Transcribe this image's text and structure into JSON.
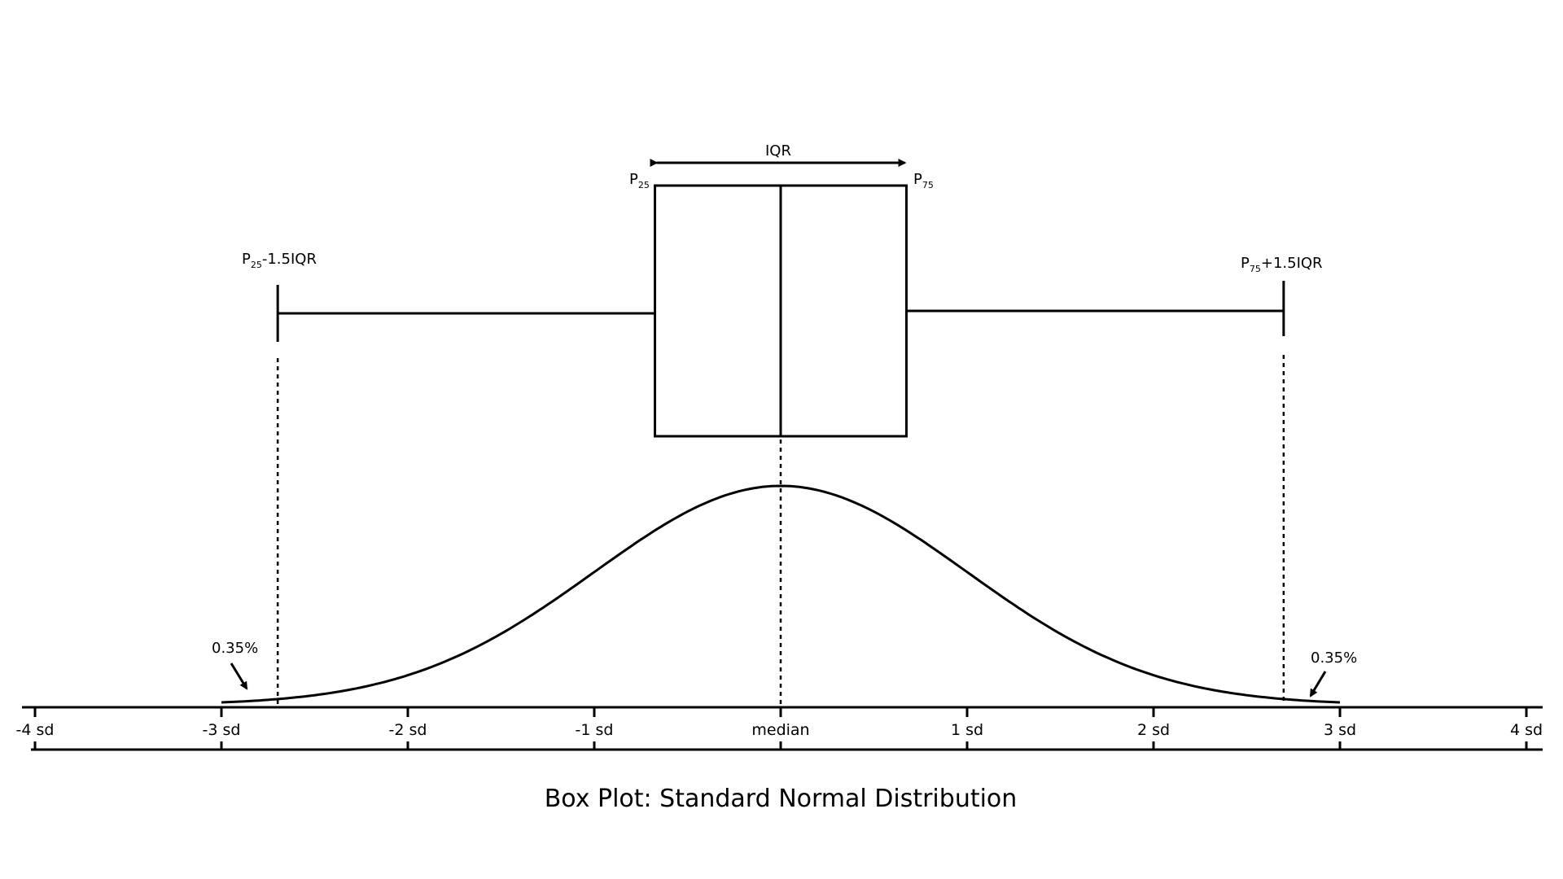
{
  "title": "Box Plot: Standard Normal Distribution",
  "labels": {
    "iqr": "IQR",
    "p25": "P",
    "p25_sub": "25",
    "p75": "P",
    "p75_sub": "75",
    "lower_fence_p": "P",
    "lower_fence_sub": "25",
    "lower_fence_rest": "-1.5IQR",
    "upper_fence_p": "P",
    "upper_fence_sub": "75",
    "upper_fence_rest": "+1.5IQR",
    "left_tail_pct": "0.35%",
    "right_tail_pct": "0.35%"
  },
  "axis": {
    "ticks": [
      {
        "value": -4,
        "label": "-4 sd"
      },
      {
        "value": -3,
        "label": "-3 sd"
      },
      {
        "value": -2,
        "label": "-2 sd"
      },
      {
        "value": -1,
        "label": "-1 sd"
      },
      {
        "value": 0,
        "label": "median"
      },
      {
        "value": 1,
        "label": "1 sd"
      },
      {
        "value": 2,
        "label": "2 sd"
      },
      {
        "value": 3,
        "label": "3 sd"
      },
      {
        "value": 4,
        "label": "4 sd"
      }
    ]
  },
  "box_plot": {
    "q1": -0.6745,
    "median": 0,
    "q3": 0.6745,
    "lower_whisker": -2.698,
    "upper_whisker": 2.698
  },
  "curve": {
    "distribution": "standard normal",
    "x_range": [
      -3,
      3
    ]
  }
}
